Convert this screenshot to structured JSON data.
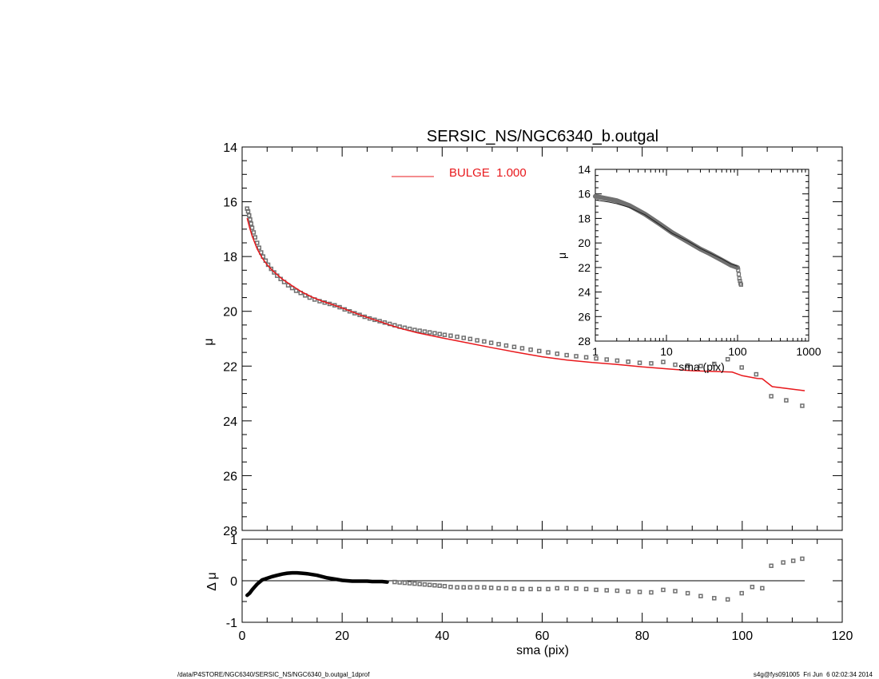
{
  "chart_data": [
    {
      "type": "scatter",
      "role": "main-profile",
      "title": "SERSIC_NS/NGC6340_b.outgal",
      "xlabel": "",
      "ylabel": "μ",
      "xlim": [
        0,
        120
      ],
      "ylim": [
        28,
        14
      ],
      "y_inverted": true,
      "xticks": [
        0,
        20,
        40,
        60,
        80,
        100,
        120
      ],
      "xticks_labeled": false,
      "yticks": [
        14,
        16,
        18,
        20,
        22,
        24,
        26,
        28
      ],
      "legend": {
        "placement": "top-center",
        "entries": [
          {
            "label": "BULGE  1.000",
            "color": "#e8181c"
          }
        ]
      },
      "series": [
        {
          "kind": "observed",
          "marker": "open-square",
          "color": "#707070",
          "points": [
            [
              1.0,
              16.25
            ],
            [
              1.2,
              16.35
            ],
            [
              1.4,
              16.5
            ],
            [
              1.6,
              16.65
            ],
            [
              1.8,
              16.8
            ],
            [
              2.0,
              16.95
            ],
            [
              2.3,
              17.12
            ],
            [
              2.6,
              17.3
            ],
            [
              3.0,
              17.5
            ],
            [
              3.4,
              17.68
            ],
            [
              3.8,
              17.85
            ],
            [
              4.2,
              18.0
            ],
            [
              4.7,
              18.15
            ],
            [
              5.2,
              18.3
            ],
            [
              5.8,
              18.45
            ],
            [
              6.4,
              18.58
            ],
            [
              7.0,
              18.7
            ],
            [
              7.7,
              18.82
            ],
            [
              8.4,
              18.93
            ],
            [
              9.2,
              19.05
            ],
            [
              10.0,
              19.15
            ],
            [
              10.8,
              19.25
            ],
            [
              11.7,
              19.33
            ],
            [
              12.6,
              19.42
            ],
            [
              13.5,
              19.5
            ],
            [
              14.5,
              19.57
            ],
            [
              15.5,
              19.63
            ],
            [
              16.5,
              19.68
            ],
            [
              17.5,
              19.73
            ],
            [
              18.5,
              19.78
            ],
            [
              19.5,
              19.85
            ],
            [
              20.5,
              19.93
            ],
            [
              21.5,
              20.0
            ],
            [
              22.5,
              20.07
            ],
            [
              23.5,
              20.13
            ],
            [
              24.5,
              20.2
            ],
            [
              25.5,
              20.26
            ],
            [
              26.5,
              20.31
            ],
            [
              27.5,
              20.36
            ],
            [
              28.5,
              20.41
            ],
            [
              29.5,
              20.46
            ],
            [
              30.5,
              20.51
            ],
            [
              31.5,
              20.56
            ],
            [
              32.5,
              20.6
            ],
            [
              33.5,
              20.64
            ],
            [
              34.5,
              20.68
            ],
            [
              35.5,
              20.71
            ],
            [
              36.5,
              20.74
            ],
            [
              37.5,
              20.77
            ],
            [
              38.5,
              20.8
            ],
            [
              39.5,
              20.83
            ],
            [
              40.5,
              20.86
            ],
            [
              41.7,
              20.89
            ],
            [
              43.0,
              20.93
            ],
            [
              44.3,
              20.97
            ],
            [
              45.6,
              21.01
            ],
            [
              47.0,
              21.06
            ],
            [
              48.4,
              21.1
            ],
            [
              49.8,
              21.15
            ],
            [
              51.3,
              21.2
            ],
            [
              52.8,
              21.25
            ],
            [
              54.4,
              21.3
            ],
            [
              56.0,
              21.35
            ],
            [
              57.7,
              21.4
            ],
            [
              59.4,
              21.45
            ],
            [
              61.2,
              21.5
            ],
            [
              63.0,
              21.55
            ],
            [
              64.9,
              21.6
            ],
            [
              66.8,
              21.64
            ],
            [
              68.8,
              21.68
            ],
            [
              70.8,
              21.72
            ],
            [
              72.9,
              21.76
            ],
            [
              75.0,
              21.8
            ],
            [
              77.2,
              21.84
            ],
            [
              79.5,
              21.88
            ],
            [
              81.8,
              21.9
            ],
            [
              84.2,
              21.85
            ],
            [
              86.6,
              21.95
            ],
            [
              89.1,
              21.98
            ],
            [
              91.7,
              22.0
            ],
            [
              94.4,
              21.92
            ],
            [
              97.1,
              21.75
            ],
            [
              99.9,
              22.05
            ],
            [
              102.8,
              22.3
            ],
            [
              105.8,
              23.1
            ],
            [
              108.8,
              23.25
            ],
            [
              112.0,
              23.45
            ]
          ]
        },
        {
          "kind": "model",
          "name": "BULGE  1.000",
          "marker": "line",
          "color": "#e8181c",
          "points": [
            [
              1.0,
              16.6
            ],
            [
              1.5,
              16.95
            ],
            [
              2.0,
              17.25
            ],
            [
              3.0,
              17.72
            ],
            [
              4.0,
              18.05
            ],
            [
              5.0,
              18.3
            ],
            [
              6.0,
              18.5
            ],
            [
              8.0,
              18.82
            ],
            [
              10.0,
              19.07
            ],
            [
              12.0,
              19.3
            ],
            [
              14.0,
              19.48
            ],
            [
              16.0,
              19.63
            ],
            [
              18.0,
              19.75
            ],
            [
              20.0,
              19.88
            ],
            [
              22.0,
              20.02
            ],
            [
              24.0,
              20.16
            ],
            [
              26.0,
              20.28
            ],
            [
              28.0,
              20.4
            ],
            [
              30.0,
              20.53
            ],
            [
              32.0,
              20.64
            ],
            [
              35.0,
              20.78
            ],
            [
              40.0,
              20.97
            ],
            [
              45.0,
              21.15
            ],
            [
              50.0,
              21.33
            ],
            [
              55.0,
              21.5
            ],
            [
              60.0,
              21.66
            ],
            [
              65.0,
              21.78
            ],
            [
              70.0,
              21.87
            ],
            [
              75.0,
              21.94
            ],
            [
              80.0,
              22.03
            ],
            [
              85.0,
              22.1
            ],
            [
              90.0,
              22.17
            ],
            [
              95.0,
              22.2
            ],
            [
              98.0,
              22.22
            ],
            [
              100.0,
              22.35
            ],
            [
              103.0,
              22.45
            ],
            [
              104.0,
              22.46
            ],
            [
              106.0,
              22.75
            ],
            [
              112.5,
              22.9
            ]
          ]
        }
      ]
    },
    {
      "type": "scatter",
      "role": "residuals",
      "xlabel": "sma (pix)",
      "ylabel": "Δ μ",
      "xlim": [
        0,
        120
      ],
      "ylim": [
        -1.0,
        1.0
      ],
      "xticks": [
        0,
        20,
        40,
        60,
        80,
        100,
        120
      ],
      "yticks": [
        -1,
        0,
        1
      ],
      "reference_line": 0,
      "series": [
        {
          "kind": "residual",
          "marker": "open-square",
          "color": "#707070",
          "points": [
            [
              30.5,
              -0.03
            ],
            [
              31.5,
              -0.04
            ],
            [
              32.5,
              -0.05
            ],
            [
              33.5,
              -0.06
            ],
            [
              34.5,
              -0.07
            ],
            [
              35.5,
              -0.08
            ],
            [
              36.5,
              -0.09
            ],
            [
              37.5,
              -0.1
            ],
            [
              38.5,
              -0.11
            ],
            [
              39.5,
              -0.12
            ],
            [
              40.5,
              -0.13
            ],
            [
              41.7,
              -0.15
            ],
            [
              43.0,
              -0.16
            ],
            [
              44.3,
              -0.16
            ],
            [
              45.6,
              -0.16
            ],
            [
              47.0,
              -0.16
            ],
            [
              48.4,
              -0.16
            ],
            [
              49.8,
              -0.17
            ],
            [
              51.3,
              -0.18
            ],
            [
              52.8,
              -0.18
            ],
            [
              54.4,
              -0.19
            ],
            [
              56.0,
              -0.2
            ],
            [
              57.7,
              -0.2
            ],
            [
              59.4,
              -0.2
            ],
            [
              61.2,
              -0.2
            ],
            [
              63.0,
              -0.18
            ],
            [
              64.9,
              -0.18
            ],
            [
              66.8,
              -0.19
            ],
            [
              68.8,
              -0.2
            ],
            [
              70.8,
              -0.22
            ],
            [
              72.9,
              -0.23
            ],
            [
              75.0,
              -0.24
            ],
            [
              77.2,
              -0.26
            ],
            [
              79.5,
              -0.27
            ],
            [
              81.8,
              -0.28
            ],
            [
              84.2,
              -0.22
            ],
            [
              86.6,
              -0.25
            ],
            [
              89.1,
              -0.3
            ],
            [
              91.7,
              -0.37
            ],
            [
              94.4,
              -0.42
            ],
            [
              97.1,
              -0.45
            ],
            [
              99.9,
              -0.3
            ],
            [
              102.0,
              -0.15
            ],
            [
              104.0,
              -0.18
            ],
            [
              105.8,
              0.36
            ],
            [
              108.2,
              0.44
            ],
            [
              110.2,
              0.48
            ],
            [
              112.0,
              0.53
            ]
          ]
        },
        {
          "kind": "residual-dense",
          "marker": "filled-curve",
          "color": "#000000",
          "points": [
            [
              1.0,
              -0.35
            ],
            [
              1.5,
              -0.3
            ],
            [
              2.0,
              -0.22
            ],
            [
              2.5,
              -0.15
            ],
            [
              3.0,
              -0.08
            ],
            [
              3.5,
              -0.03
            ],
            [
              4.0,
              0.02
            ],
            [
              5.0,
              0.06
            ],
            [
              6.0,
              0.1
            ],
            [
              7.0,
              0.13
            ],
            [
              8.0,
              0.16
            ],
            [
              9.0,
              0.18
            ],
            [
              10.0,
              0.19
            ],
            [
              11.0,
              0.19
            ],
            [
              12.0,
              0.18
            ],
            [
              13.0,
              0.17
            ],
            [
              14.0,
              0.15
            ],
            [
              15.0,
              0.13
            ],
            [
              16.0,
              0.1
            ],
            [
              17.0,
              0.07
            ],
            [
              18.0,
              0.05
            ],
            [
              19.0,
              0.03
            ],
            [
              20.0,
              0.01
            ],
            [
              21.0,
              0.0
            ],
            [
              22.0,
              -0.01
            ],
            [
              23.0,
              -0.01
            ],
            [
              24.0,
              -0.01
            ],
            [
              25.0,
              -0.01
            ],
            [
              26.0,
              -0.02
            ],
            [
              27.0,
              -0.02
            ],
            [
              28.0,
              -0.02
            ],
            [
              29.0,
              -0.03
            ]
          ]
        }
      ]
    },
    {
      "type": "scatter",
      "role": "inset-log",
      "xlabel": "sma (pix)",
      "ylabel": "μ",
      "xscale": "log",
      "xlim": [
        1,
        1000
      ],
      "ylim": [
        28,
        14
      ],
      "y_inverted": true,
      "xticks": [
        1,
        10,
        100,
        1000
      ],
      "yticks": [
        14,
        16,
        18,
        20,
        22,
        24,
        26,
        28
      ],
      "series": [
        {
          "kind": "observed",
          "marker": "band",
          "color": "#707070",
          "points": [
            [
              1.0,
              16.2
            ],
            [
              1.5,
              16.4
            ],
            [
              2.0,
              16.55
            ],
            [
              3.0,
              16.95
            ],
            [
              5.0,
              17.65
            ],
            [
              8.0,
              18.45
            ],
            [
              12.0,
              19.15
            ],
            [
              20.0,
              19.9
            ],
            [
              30.0,
              20.5
            ],
            [
              40.0,
              20.85
            ],
            [
              60.0,
              21.4
            ],
            [
              80.0,
              21.8
            ],
            [
              100.0,
              22.0
            ]
          ]
        },
        {
          "kind": "model",
          "marker": "line",
          "color": "#222222",
          "points": [
            [
              1.0,
              16.5
            ],
            [
              1.5,
              16.65
            ],
            [
              2.0,
              16.8
            ],
            [
              3.0,
              17.1
            ],
            [
              5.0,
              17.7
            ],
            [
              8.0,
              18.5
            ],
            [
              12.0,
              19.2
            ],
            [
              20.0,
              19.85
            ],
            [
              30.0,
              20.45
            ],
            [
              40.0,
              20.8
            ],
            [
              60.0,
              21.3
            ],
            [
              80.0,
              21.7
            ],
            [
              100.0,
              21.9
            ]
          ]
        },
        {
          "kind": "tail",
          "marker": "open-square",
          "color": "#707070",
          "points": [
            [
              102.0,
              22.2
            ],
            [
              104.0,
              22.55
            ],
            [
              106.0,
              22.9
            ],
            [
              108.0,
              23.1
            ],
            [
              110.0,
              23.3
            ],
            [
              112.0,
              23.4
            ]
          ]
        }
      ]
    }
  ],
  "footer": {
    "left": "/data/P4STORE/NGC6340/SERSIC_NS/NGC6340_b.outgal_1dprof",
    "right": "s4g@fys091005  Fri Jun  6 02:02:34 2014"
  }
}
